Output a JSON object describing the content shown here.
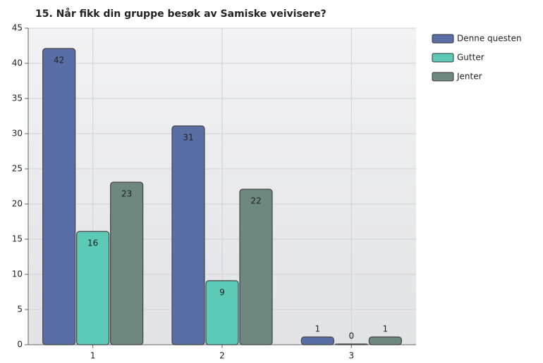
{
  "chart_data": {
    "type": "bar",
    "title": "15. Når fikk din gruppe besøk av Samiske veivisere?",
    "categories": [
      "1",
      "2",
      "3"
    ],
    "series": [
      {
        "name": "Denne questen",
        "color": "#5a6ea6",
        "values": [
          42,
          31,
          1
        ]
      },
      {
        "name": "Gutter",
        "color": "#5ccab6",
        "values": [
          16,
          9,
          0
        ]
      },
      {
        "name": "Jenter",
        "color": "#6e877f",
        "values": [
          23,
          22,
          1
        ]
      }
    ],
    "ylim": [
      0,
      45
    ],
    "yticks": [
      0,
      5,
      10,
      15,
      20,
      25,
      30,
      35,
      40,
      45
    ],
    "grid": true,
    "legend": "right"
  }
}
